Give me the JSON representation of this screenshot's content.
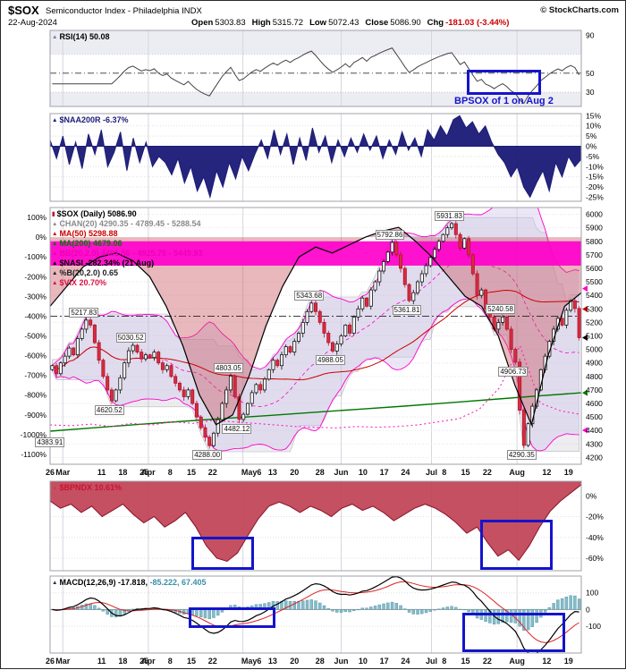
{
  "header": {
    "symbol": "$SOX",
    "index_name": "Semiconductor Index - Philadelphia INDX",
    "copyright": "© StockCharts.com",
    "date": "22-Aug-2024",
    "quote": {
      "open_label": "Open",
      "open": "5303.83",
      "high_label": "High",
      "high": "5315.72",
      "low_label": "Low",
      "low": "5072.43",
      "close_label": "Close",
      "close": "5086.90",
      "chg_label": "Chg",
      "chg": "-181.03 (-3.44%)"
    }
  },
  "colors": {
    "candle_down": "#d42e3e",
    "candle_up_border": "#111111",
    "bollinger": "#ff00cc",
    "ma50": "#cc0000",
    "ma200": "#007700",
    "nasi_line": "#000000",
    "nasi_cloud": "#c85560",
    "naa_fill": "#1c1c78",
    "bpndx_fill": "#c04355",
    "macd_hist": "#7db8c6",
    "macd_signal": "#dd2222",
    "annotation_blue": "#1414cc",
    "chg_red": "#cc0000",
    "rsi_line": "#444444"
  },
  "panels": {
    "rsi": {
      "label": "RSI(14) 50.08",
      "y_ticks": [
        90,
        50,
        30
      ],
      "annotation": "BPSOX of 1 on Aug 2"
    },
    "naa200r": {
      "label": "$NAA200R -6.37%",
      "y_ticks": [
        "15%",
        "10%",
        "5%",
        "0%",
        "-5%",
        "-10%",
        "-15%",
        "-20%",
        "-25%"
      ]
    },
    "main": {
      "labels": [
        {
          "text": "$SOX (Daily) 5086.90",
          "color": "#000000",
          "icon": "candlestick-icon"
        },
        {
          "text": "CHAN(20) 4290.35 - 4789.45 - 5288.54",
          "color": "#8a8a8a",
          "icon": "triangle-icon"
        },
        {
          "text": "MA(50) 5298.88",
          "color": "#cc0000",
          "icon": "triangle-icon"
        },
        {
          "text": "MA(200) 4679.06",
          "color": "#007700",
          "icon": "triangle-icon"
        },
        {
          "text": "BB(20,2.0) 4401.56 - 4925.75 - 5449.93",
          "color": "#ee00bb",
          "icon": "triangle-icon"
        },
        {
          "text": "$NASI -282.34% (21 Aug)",
          "color": "#000000",
          "icon": "triangle-icon"
        },
        {
          "text": "%B(20,2.0) 0.65",
          "color": "#222222",
          "icon": "triangle-icon"
        },
        {
          "text": "$VIX 20.70%",
          "color": "#dd1144",
          "icon": "triangle-icon"
        }
      ],
      "left_ticks": [
        "100%",
        "0%",
        "-100%",
        "-200%",
        "-300%",
        "-400%",
        "-500%",
        "-600%",
        "-700%",
        "-800%",
        "-900%",
        "-1000%",
        "-1100%"
      ],
      "right_ticks": [
        6000,
        5900,
        5800,
        5700,
        5600,
        5500,
        5400,
        5300,
        5200,
        5100,
        5000,
        4900,
        4800,
        4700,
        4600,
        4500,
        4400,
        4300,
        4200
      ]
    },
    "bpndx": {
      "label": "$BPNDX 10.61%",
      "y_ticks": [
        "0%",
        "-20%",
        "-40%",
        "-60%"
      ]
    },
    "macd": {
      "label_main": "MACD(12,26,9) -17.818,",
      "label_secondary": "-85.222, 67.405",
      "y_ticks": [
        100,
        0,
        -100
      ]
    }
  },
  "date_axis": [
    [
      "26",
      0
    ],
    [
      "Mar",
      0.024
    ],
    [
      "11",
      0.097
    ],
    [
      "18",
      0.137
    ],
    [
      "25",
      0.177
    ],
    [
      "Apr",
      0.185
    ],
    [
      "8",
      0.226
    ],
    [
      "15",
      0.266
    ],
    [
      "22",
      0.306
    ],
    [
      "May6",
      0.379
    ],
    [
      "13",
      0.419
    ],
    [
      "20",
      0.46
    ],
    [
      "28",
      0.508
    ],
    [
      "Jun",
      0.548
    ],
    [
      "10",
      0.589
    ],
    [
      "17",
      0.629
    ],
    [
      "24",
      0.669
    ],
    [
      "Jul",
      0.718
    ],
    [
      "8",
      0.742
    ],
    [
      "15",
      0.782
    ],
    [
      "22",
      0.823
    ],
    [
      "Aug",
      0.879
    ],
    [
      "12",
      0.935
    ],
    [
      "19",
      0.976
    ]
  ],
  "month_gridlines": [
    0.024,
    0.185,
    0.363,
    0.548,
    0.718,
    0.879
  ],
  "chart_data": [
    {
      "panel": "rsi",
      "type": "line",
      "indicator": "RSI",
      "period": 14,
      "last_value": 50.08,
      "y_range": [
        15,
        95
      ],
      "midline": 50,
      "shaded_zones": [
        [
          70,
          95
        ],
        [
          15,
          30
        ]
      ]
    },
    {
      "panel": "naa200r",
      "type": "area",
      "name": "$NAA200R",
      "last_value": -6.37,
      "y_range": [
        -27,
        16
      ],
      "baseline": 0,
      "values": [
        3,
        -6,
        5,
        -9,
        2,
        -11,
        6,
        -4,
        8,
        -10,
        -3,
        7,
        -12,
        4,
        -8,
        2,
        -10,
        -5,
        -8,
        -14,
        -6,
        -18,
        -10,
        -22,
        -15,
        -25,
        -12,
        -20,
        -8,
        -16,
        -5,
        -12,
        -4,
        3,
        -6,
        8,
        -4,
        6,
        -9,
        4,
        -7,
        9,
        -3,
        5,
        -8,
        3,
        -5,
        4,
        -3,
        6,
        -2,
        5,
        -6,
        3,
        -4,
        7,
        -2,
        4,
        -5,
        8,
        3,
        10,
        5,
        13,
        15,
        9,
        12,
        6,
        10,
        2,
        -4,
        -8,
        -15,
        -10,
        -20,
        -25,
        -18,
        -12,
        -22,
        -8,
        -15,
        -5,
        -10,
        -6.37
      ]
    },
    {
      "panel": "main",
      "type": "candlestick",
      "name": "$SOX (Daily)",
      "last_close": 5086.9,
      "y_range": [
        4150,
        6050
      ],
      "left_axis_range": [
        -1150,
        150
      ],
      "first_open": 4850,
      "closes": [
        4880,
        4820,
        4900,
        4950,
        5010,
        4960,
        5080,
        5150,
        5217,
        5180,
        5050,
        4920,
        4800,
        4700,
        4620,
        4700,
        4790,
        4900,
        4990,
        5030,
        4980,
        4930,
        4960,
        4940,
        4980,
        4900,
        4850,
        4880,
        4800,
        4750,
        4700,
        4650,
        4700,
        4600,
        4500,
        4420,
        4350,
        4288,
        4380,
        4480,
        4600,
        4700,
        4803,
        4650,
        4482,
        4520,
        4600,
        4680,
        4740,
        4700,
        4780,
        4850,
        4920,
        4880,
        4960,
        5020,
        4980,
        5060,
        5120,
        5200,
        5280,
        5343,
        5280,
        5200,
        5120,
        5050,
        4988,
        5040,
        5100,
        5180,
        5120,
        5240,
        5300,
        5380,
        5320,
        5440,
        5500,
        5580,
        5650,
        5720,
        5792,
        5700,
        5600,
        5480,
        5361,
        5420,
        5500,
        5560,
        5620,
        5680,
        5740,
        5800,
        5850,
        5900,
        5931,
        5850,
        5750,
        5820,
        5700,
        5560,
        5400,
        5440,
        5300,
        5240,
        5150,
        5200,
        5240,
        5150,
        5000,
        4906,
        4550,
        4290,
        4450,
        4580,
        4700,
        4850,
        4950,
        5060,
        5150,
        5230,
        5180,
        5290,
        5360,
        5303,
        5087
      ],
      "overlays": {
        "ma200_anchors": [
          4395,
          4420,
          4445,
          4468,
          4490,
          4512,
          4535,
          4558,
          4580,
          4605,
          4630,
          4655,
          4679
        ],
        "nasi_pct": [
          -350,
          -250,
          -150,
          -100,
          -80,
          -120,
          -200,
          -350,
          -550,
          -800,
          -950,
          -900,
          -700,
          -450,
          -250,
          -100,
          -50,
          -80,
          -40,
          0,
          30,
          50,
          -20,
          -100,
          -200,
          -300,
          -350,
          -500,
          -750,
          -950,
          -600,
          -350,
          -282.34
        ],
        "vix": [
          14,
          13.5,
          14.5,
          13,
          15,
          14,
          16,
          15,
          17,
          16,
          15,
          14,
          13,
          12.5,
          12,
          13,
          12.5,
          13,
          14,
          16,
          18,
          24,
          38,
          65,
          28,
          23,
          20.7
        ],
        "percent_b_band": [
          5800,
          5620
        ],
        "dashdot_left_pct": -400,
        "markers": [
          {
            "price": 5449.93,
            "color": "#ff00cc"
          },
          {
            "price": 5298.88,
            "color": "#cc0000"
          },
          {
            "price": 5086.9,
            "color": "#000000"
          },
          {
            "price": 4679.06,
            "color": "#007700"
          },
          {
            "price": 4401.56,
            "color": "#ff00cc"
          }
        ]
      },
      "annotations": [
        [
          5217.83,
          8,
          "above"
        ],
        [
          4620.52,
          14,
          "below"
        ],
        [
          5030.52,
          19,
          "above"
        ],
        [
          4288,
          37,
          "below"
        ],
        [
          4803.05,
          42,
          "above"
        ],
        [
          4482.12,
          44,
          "below"
        ],
        [
          5343.68,
          61,
          "above"
        ],
        [
          4988.05,
          66,
          "below"
        ],
        [
          5792.86,
          80,
          "above"
        ],
        [
          5361.81,
          84,
          "below"
        ],
        [
          5931.83,
          94,
          "above"
        ],
        [
          5240.58,
          106,
          "above"
        ],
        [
          4906.73,
          109,
          "below"
        ],
        [
          4290.35,
          111,
          "below"
        ],
        [
          4383.91,
          0,
          "below"
        ]
      ]
    },
    {
      "panel": "bpndx",
      "type": "area",
      "name": "$BPNDX",
      "last_value": 10.61,
      "y_range": [
        -72,
        14
      ],
      "fill_from": "top",
      "values": [
        -5,
        -12,
        -8,
        -16,
        -10,
        -20,
        -14,
        -8,
        -18,
        -26,
        -20,
        -30,
        -24,
        -16,
        -30,
        -48,
        -60,
        -63,
        -55,
        -38,
        -22,
        -10,
        -6,
        -10,
        -16,
        -10,
        -14,
        -20,
        -12,
        -8,
        -14,
        -10,
        -16,
        -24,
        -18,
        -12,
        -8,
        -12,
        -18,
        -26,
        -36,
        -30,
        -45,
        -58,
        -52,
        -62,
        -48,
        -30,
        -15,
        -5,
        3,
        10.61
      ]
    },
    {
      "panel": "macd",
      "type": "macd",
      "params": [
        12,
        26,
        9
      ],
      "displayed_values": [
        -17.818,
        -85.222,
        67.405
      ],
      "y_range": [
        -260,
        200
      ]
    }
  ]
}
